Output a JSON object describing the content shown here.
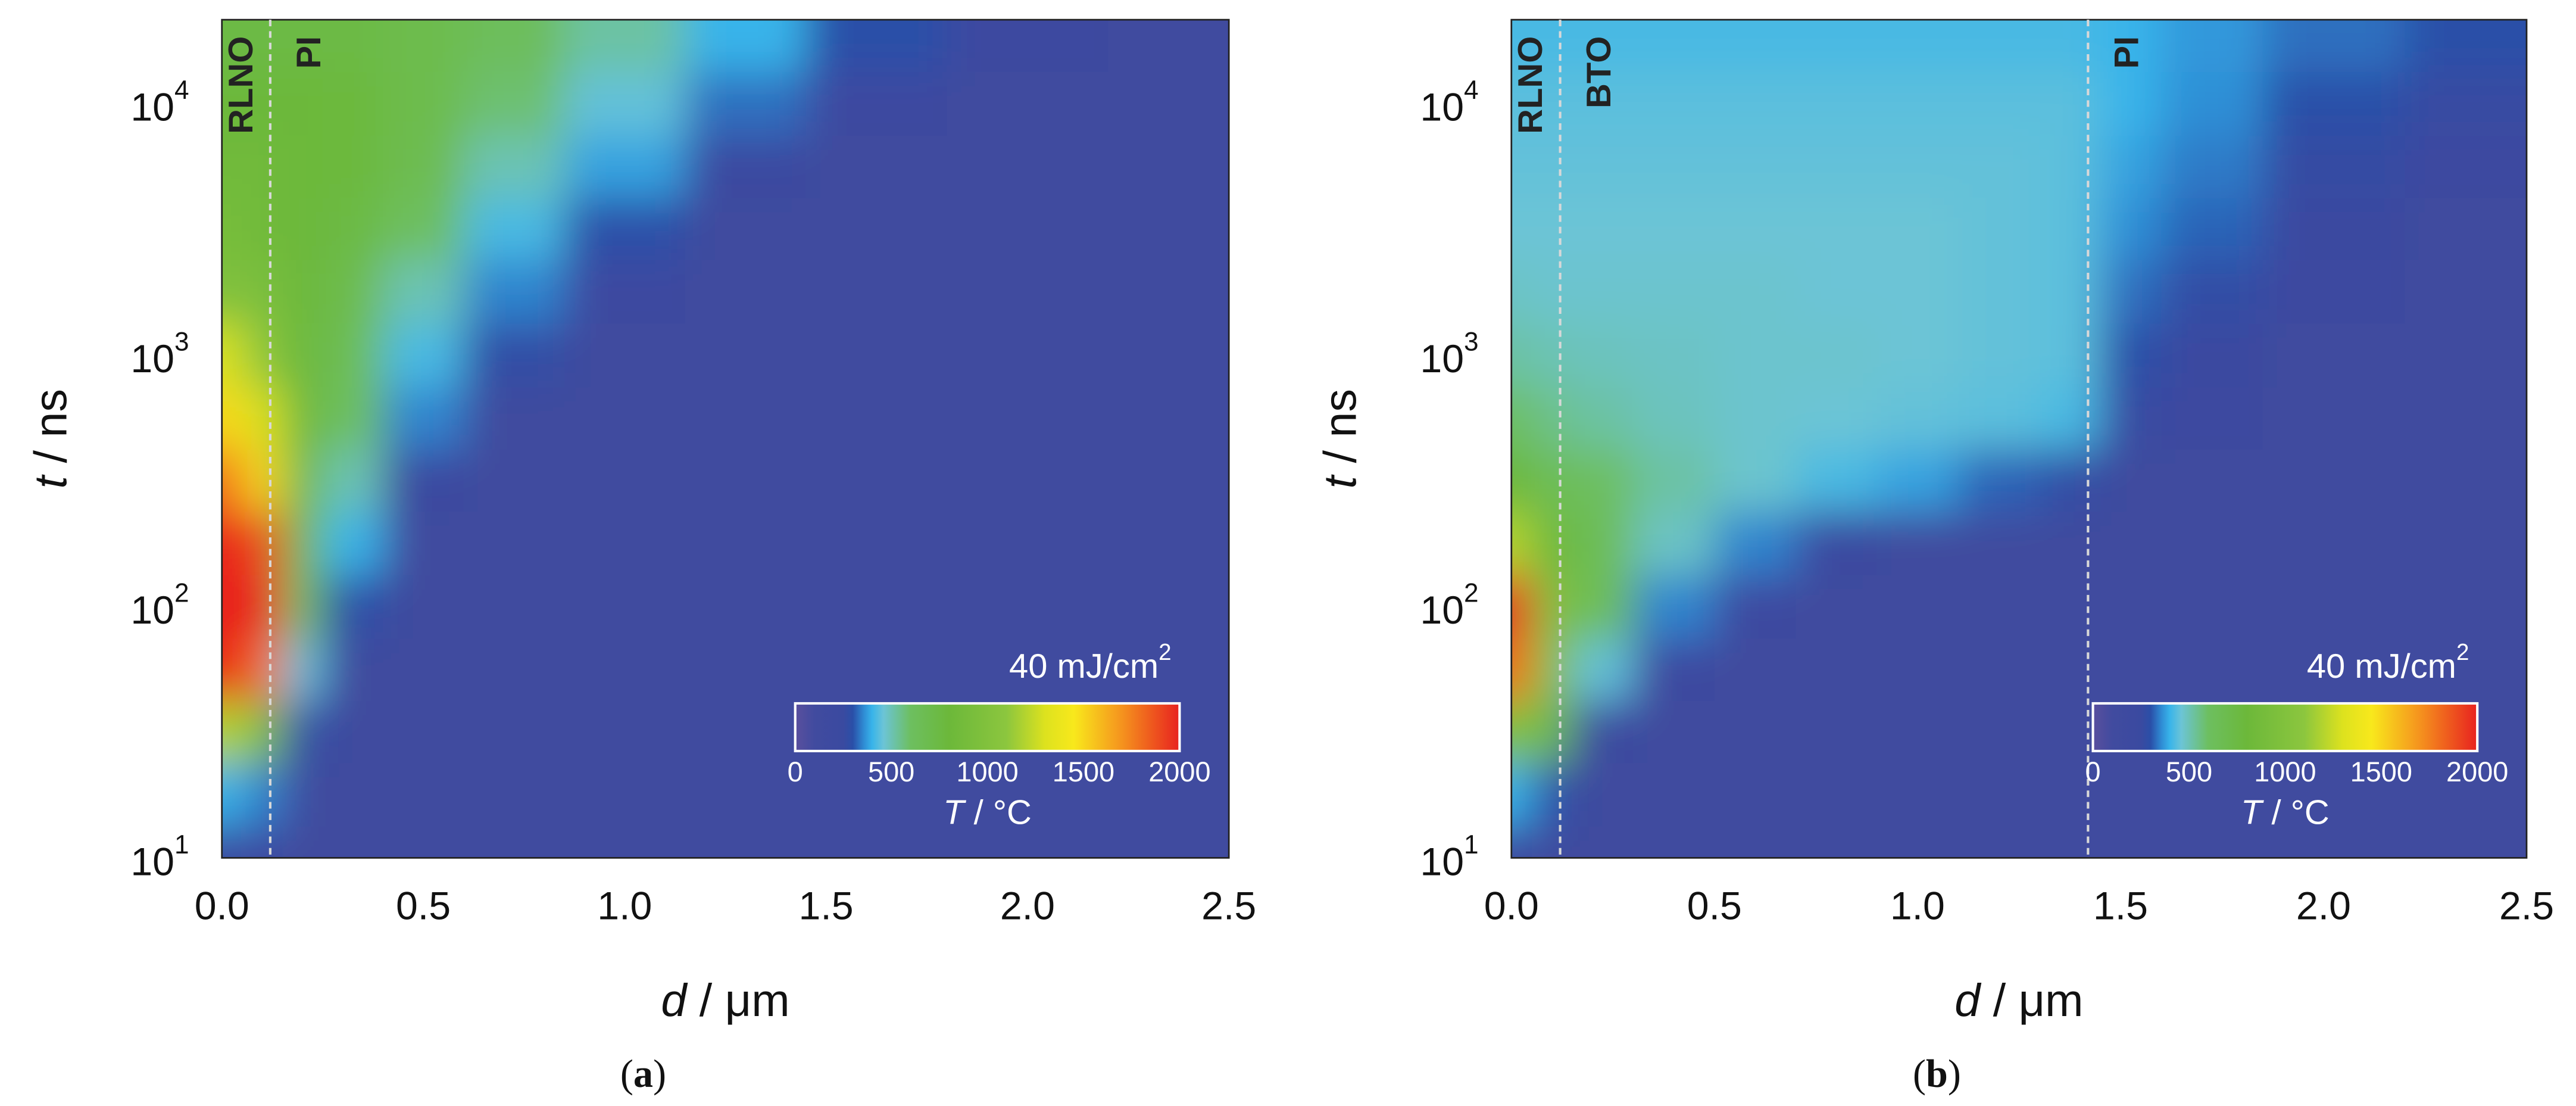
{
  "chart_data": [
    {
      "type": "heatmap",
      "panel_label": {
        "open": "(",
        "letter": "a",
        "close": ")"
      },
      "x_label": {
        "symbol": "d",
        "text": " / μm"
      },
      "y_label": {
        "symbol": "t",
        "text": " / ns"
      },
      "xlim": [
        0,
        2.5
      ],
      "ylim": [
        10,
        21500
      ],
      "log_y": true,
      "xticks": [
        {
          "value": 0,
          "label": "0.0"
        },
        0.5,
        {
          "value": 1,
          "label": "1.0"
        },
        1.5,
        {
          "value": 2,
          "label": "2.0"
        },
        2.5
      ],
      "yticks": [
        {
          "value": 10,
          "label": "10",
          "exponent": "1"
        },
        {
          "value": 100,
          "label": "10",
          "exponent": "2"
        },
        {
          "value": 1000,
          "label": "10",
          "exponent": "3"
        },
        {
          "value": 10000,
          "label": "10",
          "exponent": "4"
        }
      ],
      "layers": [
        "RLNO",
        "PI"
      ],
      "boundaries": [
        0.12
      ],
      "colorbar": {
        "annotation": {
          "text": "40 mJ/cm",
          "sup": "2"
        },
        "label": {
          "symbol": "T",
          "text": " / °C"
        },
        "lim": [
          0,
          2000
        ],
        "ticks": [
          0,
          500,
          1000,
          1500,
          2000
        ]
      },
      "colorscale": [
        {
          "value": 0,
          "color": "#5a4f9e"
        },
        {
          "value": 100,
          "color": "#414b9f"
        },
        {
          "value": 250,
          "color": "#3a4aa0"
        },
        {
          "value": 300,
          "color": "#2a4fa8"
        },
        {
          "value": 360,
          "color": "#2f8fd6"
        },
        {
          "value": 400,
          "color": "#38b4ea"
        },
        {
          "value": 460,
          "color": "#6cc4d6"
        },
        {
          "value": 600,
          "color": "#6dbf60"
        },
        {
          "value": 800,
          "color": "#6cb83a"
        },
        {
          "value": 1100,
          "color": "#8cc63e"
        },
        {
          "value": 1300,
          "color": "#dde21e"
        },
        {
          "value": 1450,
          "color": "#f8e81c"
        },
        {
          "value": 1700,
          "color": "#f5931e"
        },
        {
          "value": 2000,
          "color": "#e8221f"
        }
      ],
      "x": [
        0,
        0.1,
        0.2,
        0.3,
        0.5,
        0.7,
        1.0,
        1.3,
        1.6,
        2.0,
        2.4
      ],
      "y": [
        10,
        18,
        32,
        56,
        100,
        180,
        320,
        560,
        1000,
        1800,
        3200,
        5600,
        10000,
        18000
      ],
      "values": [
        [
          250,
          200,
          100,
          100,
          100,
          100,
          100,
          100,
          100,
          100,
          100
        ],
        [
          400,
          350,
          150,
          100,
          100,
          100,
          100,
          100,
          100,
          100,
          100
        ],
        [
          1200,
          1000,
          300,
          100,
          100,
          100,
          100,
          100,
          100,
          100,
          100
        ],
        [
          2000,
          1800,
          450,
          150,
          100,
          100,
          100,
          100,
          100,
          100,
          100
        ],
        [
          2000,
          2000,
          600,
          300,
          100,
          100,
          100,
          100,
          100,
          100,
          100
        ],
        [
          2000,
          1900,
          700,
          400,
          150,
          100,
          100,
          100,
          100,
          100,
          100
        ],
        [
          1800,
          1500,
          750,
          500,
          250,
          100,
          100,
          100,
          100,
          100,
          100
        ],
        [
          1500,
          1300,
          800,
          600,
          350,
          150,
          100,
          100,
          100,
          100,
          100
        ],
        [
          1300,
          1100,
          800,
          650,
          420,
          280,
          100,
          100,
          100,
          100,
          100
        ],
        [
          1000,
          950,
          800,
          700,
          500,
          350,
          200,
          100,
          100,
          100,
          100
        ],
        [
          900,
          850,
          800,
          750,
          600,
          420,
          300,
          150,
          100,
          100,
          100
        ],
        [
          850,
          850,
          800,
          780,
          680,
          500,
          380,
          250,
          120,
          100,
          100
        ],
        [
          800,
          800,
          800,
          780,
          700,
          580,
          450,
          330,
          200,
          120,
          100
        ],
        [
          750,
          750,
          750,
          740,
          700,
          620,
          520,
          400,
          300,
          180,
          120
        ]
      ]
    },
    {
      "type": "heatmap",
      "panel_label": {
        "open": "(",
        "letter": "b",
        "close": ")"
      },
      "x_label": {
        "symbol": "d",
        "text": " / μm"
      },
      "y_label": {
        "symbol": "t",
        "text": " / ns"
      },
      "xlim": [
        0,
        2.5
      ],
      "ylim": [
        10,
        21500
      ],
      "log_y": true,
      "xticks": [
        {
          "value": 0,
          "label": "0.0"
        },
        0.5,
        {
          "value": 1,
          "label": "1.0"
        },
        1.5,
        {
          "value": 2,
          "label": "2.0"
        },
        2.5
      ],
      "yticks": [
        {
          "value": 10,
          "label": "10",
          "exponent": "1"
        },
        {
          "value": 100,
          "label": "10",
          "exponent": "2"
        },
        {
          "value": 1000,
          "label": "10",
          "exponent": "3"
        },
        {
          "value": 10000,
          "label": "10",
          "exponent": "4"
        }
      ],
      "layers": [
        "RLNO",
        "BTO",
        "PI"
      ],
      "boundaries": [
        0.12,
        1.42
      ],
      "colorbar": {
        "annotation": {
          "text": "40 mJ/cm",
          "sup": "2"
        },
        "label": {
          "symbol": "T",
          "text": " / °C"
        },
        "lim": [
          0,
          2000
        ],
        "ticks": [
          0,
          500,
          1000,
          1500,
          2000
        ]
      },
      "colorscale": [
        {
          "value": 0,
          "color": "#5a4f9e"
        },
        {
          "value": 100,
          "color": "#414b9f"
        },
        {
          "value": 250,
          "color": "#3a4aa0"
        },
        {
          "value": 300,
          "color": "#2a4fa8"
        },
        {
          "value": 360,
          "color": "#2f8fd6"
        },
        {
          "value": 400,
          "color": "#38b4ea"
        },
        {
          "value": 460,
          "color": "#6cc4d6"
        },
        {
          "value": 600,
          "color": "#6dbf60"
        },
        {
          "value": 800,
          "color": "#6cb83a"
        },
        {
          "value": 1100,
          "color": "#8cc63e"
        },
        {
          "value": 1300,
          "color": "#dde21e"
        },
        {
          "value": 1450,
          "color": "#f8e81c"
        },
        {
          "value": 1700,
          "color": "#f5931e"
        },
        {
          "value": 2000,
          "color": "#e8221f"
        }
      ],
      "x": [
        0,
        0.1,
        0.2,
        0.4,
        0.6,
        0.8,
        1.0,
        1.2,
        1.4,
        1.5,
        1.7,
        2.0,
        2.4
      ],
      "y": [
        10,
        18,
        32,
        56,
        100,
        180,
        320,
        560,
        1000,
        1800,
        3200,
        5600,
        10000,
        18000
      ],
      "values": [
        [
          200,
          150,
          100,
          100,
          100,
          100,
          100,
          100,
          100,
          100,
          100,
          100,
          100
        ],
        [
          400,
          300,
          100,
          100,
          100,
          100,
          100,
          100,
          100,
          100,
          100,
          100,
          100
        ],
        [
          1000,
          700,
          250,
          100,
          100,
          100,
          100,
          100,
          100,
          100,
          100,
          100,
          100
        ],
        [
          1800,
          1000,
          450,
          200,
          100,
          100,
          100,
          100,
          100,
          100,
          100,
          100,
          100
        ],
        [
          2000,
          1000,
          650,
          350,
          200,
          100,
          100,
          100,
          100,
          100,
          100,
          100,
          100
        ],
        [
          1200,
          800,
          650,
          480,
          350,
          250,
          150,
          100,
          100,
          100,
          100,
          100,
          100
        ],
        [
          800,
          650,
          600,
          520,
          470,
          420,
          380,
          320,
          280,
          150,
          100,
          100,
          100
        ],
        [
          600,
          550,
          520,
          490,
          470,
          460,
          450,
          440,
          420,
          260,
          180,
          120,
          100
        ],
        [
          520,
          500,
          490,
          480,
          470,
          470,
          460,
          450,
          440,
          300,
          230,
          150,
          110
        ],
        [
          480,
          470,
          470,
          470,
          470,
          460,
          460,
          450,
          440,
          330,
          280,
          180,
          120
        ],
        [
          460,
          460,
          460,
          460,
          460,
          460,
          460,
          450,
          440,
          360,
          320,
          230,
          150
        ],
        [
          450,
          450,
          450,
          450,
          450,
          450,
          450,
          450,
          440,
          380,
          340,
          270,
          200
        ],
        [
          440,
          440,
          440,
          440,
          440,
          440,
          440,
          440,
          440,
          400,
          360,
          300,
          260
        ],
        [
          420,
          420,
          420,
          420,
          420,
          420,
          420,
          420,
          420,
          400,
          370,
          330,
          300
        ]
      ]
    }
  ]
}
